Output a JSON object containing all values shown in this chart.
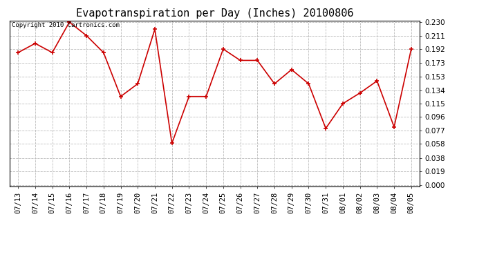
{
  "title": "Evapotranspiration per Day (Inches) 20100806",
  "copyright_text": "Copyright 2010 Cartronics.com",
  "dates": [
    "07/13",
    "07/14",
    "07/15",
    "07/16",
    "07/17",
    "07/18",
    "07/19",
    "07/20",
    "07/21",
    "07/22",
    "07/23",
    "07/24",
    "07/25",
    "07/26",
    "07/27",
    "07/28",
    "07/29",
    "07/30",
    "07/31",
    "08/01",
    "08/02",
    "08/03",
    "08/04",
    "08/05"
  ],
  "values": [
    0.187,
    0.2,
    0.187,
    0.23,
    0.211,
    0.187,
    0.125,
    0.143,
    0.22,
    0.059,
    0.125,
    0.125,
    0.192,
    0.176,
    0.176,
    0.143,
    0.163,
    0.143,
    0.08,
    0.115,
    0.13,
    0.147,
    0.082,
    0.192
  ],
  "yticks": [
    0.0,
    0.019,
    0.038,
    0.058,
    0.077,
    0.096,
    0.115,
    0.134,
    0.153,
    0.173,
    0.192,
    0.211,
    0.23
  ],
  "ylim": [
    0.0,
    0.23
  ],
  "line_color": "#cc0000",
  "marker": "+",
  "marker_size": 4,
  "background_color": "#ffffff",
  "grid_color": "#bbbbbb",
  "title_fontsize": 11,
  "copyright_fontsize": 6.5,
  "tick_fontsize": 7.5,
  "figsize": [
    6.9,
    3.75
  ],
  "dpi": 100
}
